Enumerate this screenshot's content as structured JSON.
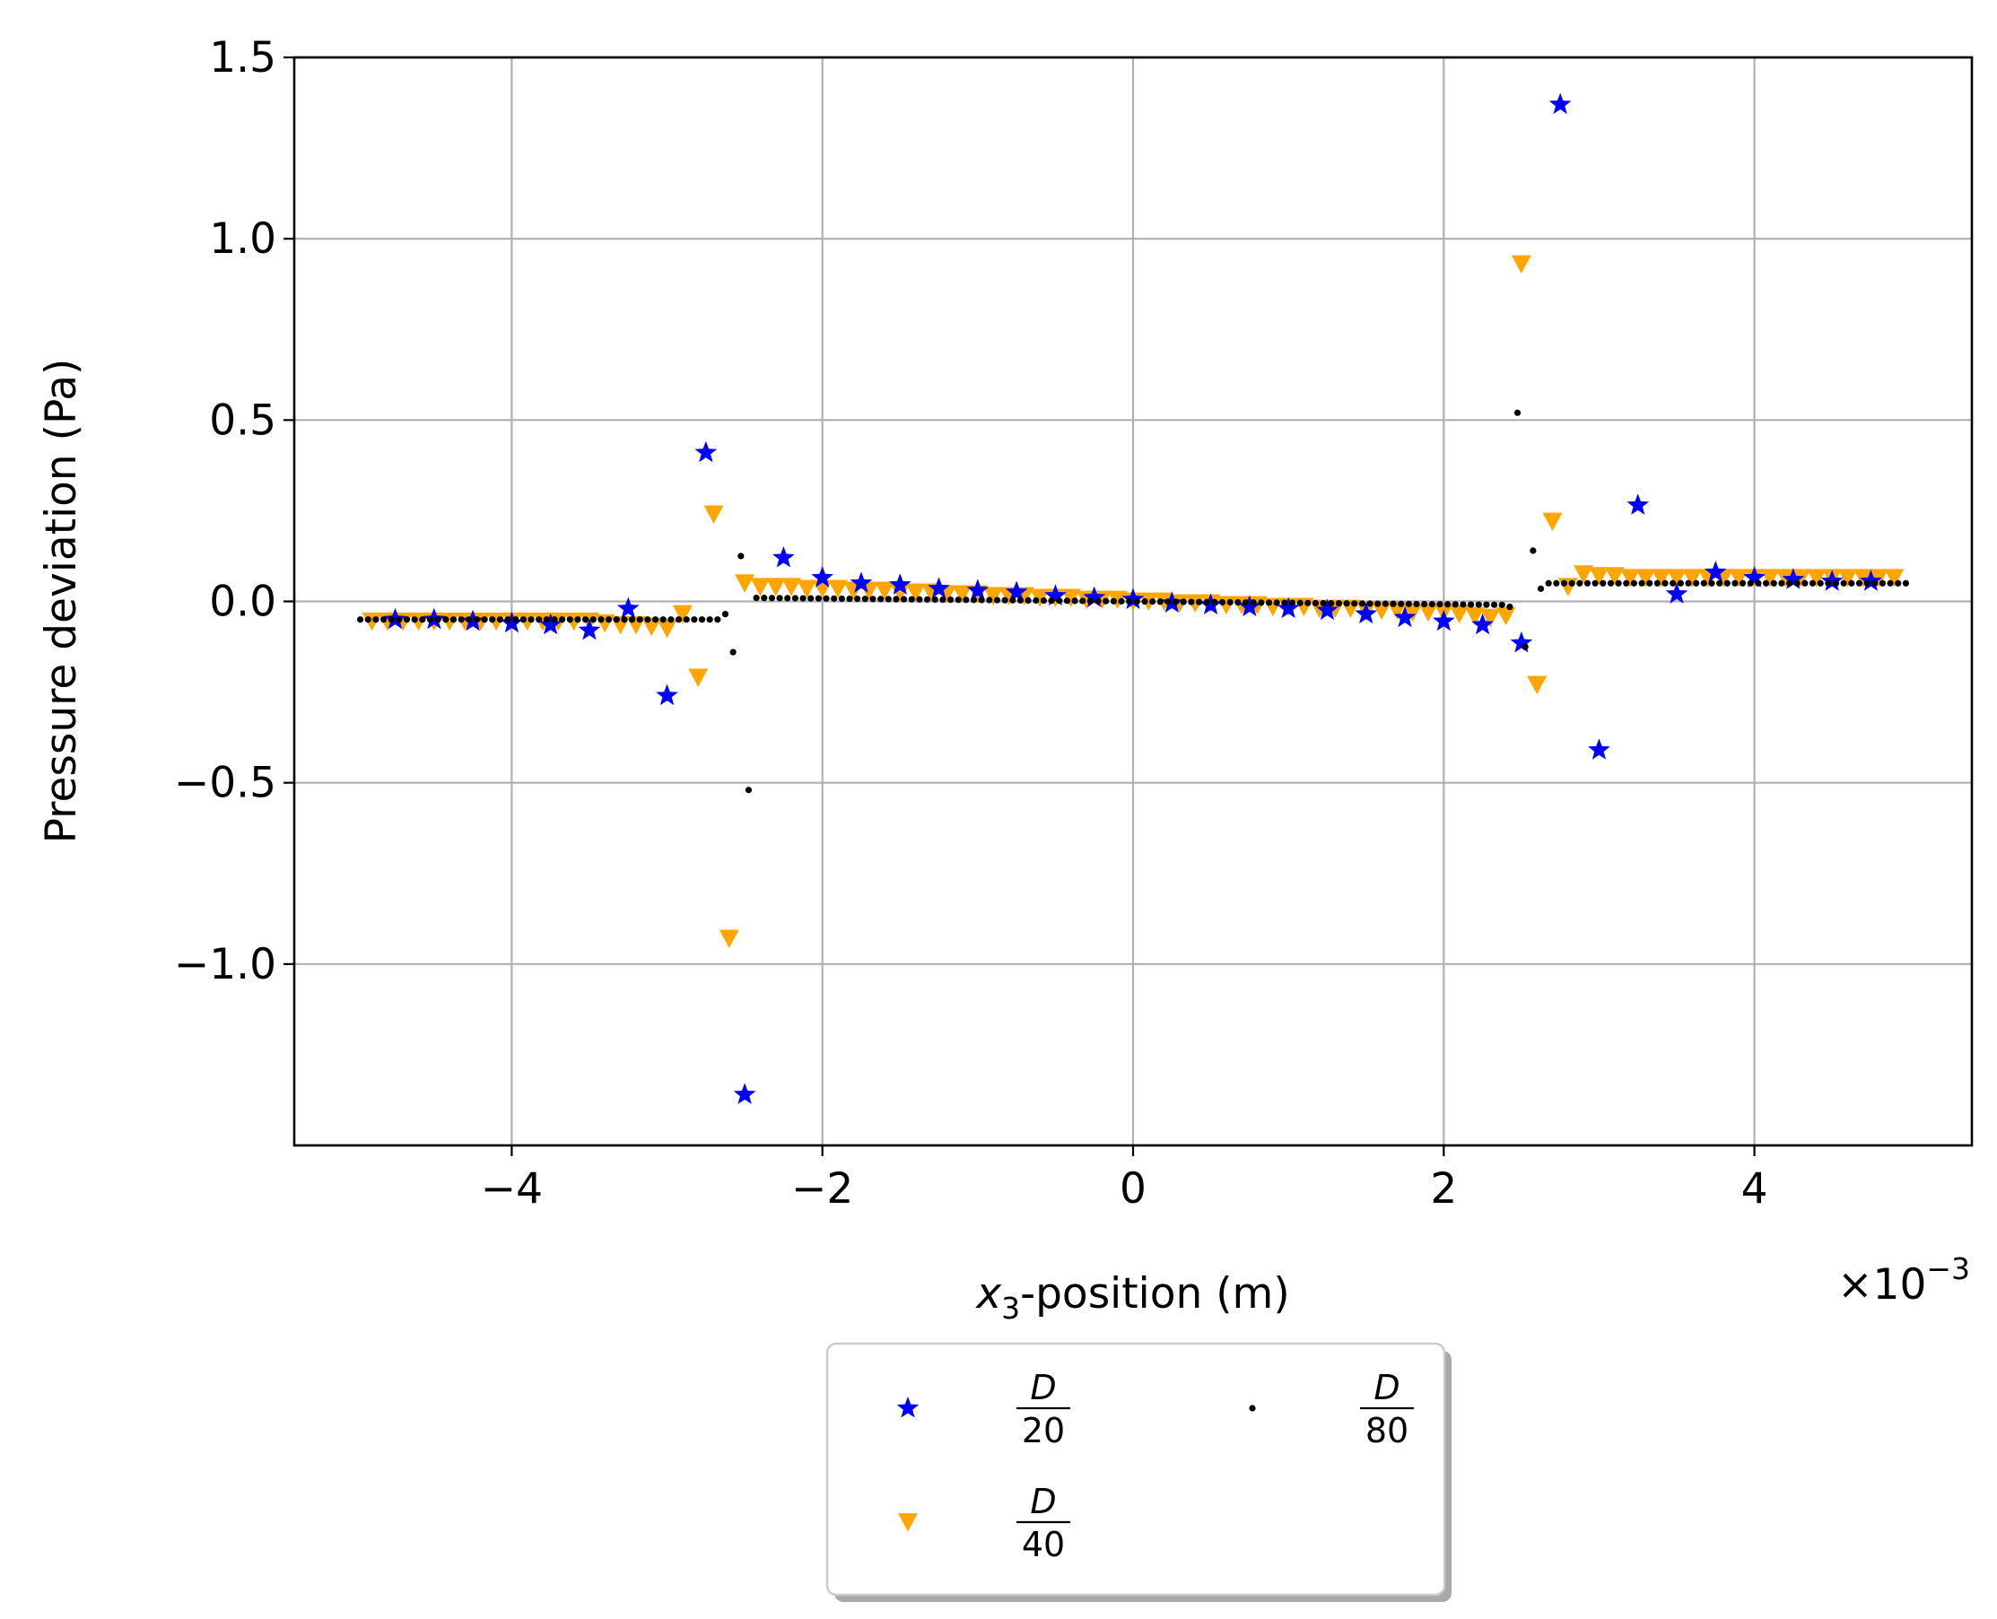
{
  "chart_data": {
    "type": "scatter",
    "title": "",
    "xlabel": "x3-position (m)",
    "xlabel_parts": {
      "var": "x",
      "sub": "3",
      "rest": "-position (m)"
    },
    "ylabel": "Pressure deviation (Pa)",
    "x_offset_text": {
      "base": "×10",
      "exp": "−3"
    },
    "xlim": [
      -5.4,
      5.4
    ],
    "ylim": [
      -1.5,
      1.5
    ],
    "x_ticks": [
      -4,
      -2,
      0,
      2,
      4
    ],
    "x_tick_labels": [
      "−4",
      "−2",
      "0",
      "2",
      "4"
    ],
    "y_ticks": [
      -1.0,
      -0.5,
      0.0,
      0.5,
      1.0,
      1.5
    ],
    "y_tick_labels": [
      "−1.0",
      "−0.5",
      "0.0",
      "0.5",
      "1.0",
      "1.5"
    ],
    "grid": true,
    "legend_placement": "below plot, center",
    "legend_columns": 2,
    "series": [
      {
        "name": "D/20",
        "legend_num": "D",
        "legend_den": "20",
        "marker": "star",
        "color": "#0000ff",
        "x": [
          -4.75,
          -4.5,
          -4.25,
          -4.0,
          -3.75,
          -3.5,
          -3.25,
          -3.0,
          -2.75,
          -2.5,
          -2.25,
          -2.0,
          -1.75,
          -1.5,
          -1.25,
          -1.0,
          -0.75,
          -0.5,
          -0.25,
          0.0,
          0.25,
          0.5,
          0.75,
          1.0,
          1.25,
          1.5,
          1.75,
          2.0,
          2.25,
          2.5,
          2.75,
          3.0,
          3.25,
          3.5,
          3.75,
          4.0,
          4.25,
          4.5,
          4.75
        ],
        "y": [
          -0.05,
          -0.05,
          -0.055,
          -0.06,
          -0.065,
          -0.08,
          -0.02,
          -0.26,
          0.41,
          -1.36,
          0.12,
          0.065,
          0.05,
          0.045,
          0.035,
          0.03,
          0.025,
          0.015,
          0.01,
          0.005,
          -0.005,
          -0.01,
          -0.015,
          -0.02,
          -0.025,
          -0.035,
          -0.045,
          -0.055,
          -0.065,
          -0.115,
          1.37,
          -0.41,
          0.265,
          0.02,
          0.08,
          0.065,
          0.06,
          0.055,
          0.055
        ]
      },
      {
        "name": "D/40",
        "legend_num": "D",
        "legend_den": "40",
        "marker": "triangle_down",
        "color": "#ffa500",
        "x": [
          -4.9,
          -4.8,
          -4.7,
          -4.6,
          -4.5,
          -4.4,
          -4.3,
          -4.2,
          -4.1,
          -4.0,
          -3.9,
          -3.8,
          -3.7,
          -3.6,
          -3.5,
          -3.4,
          -3.3,
          -3.2,
          -3.1,
          -3.0,
          -2.9,
          -2.8,
          -2.7,
          -2.6,
          -2.5,
          -2.4,
          -2.3,
          -2.2,
          -2.1,
          -2.0,
          -1.9,
          -1.8,
          -1.7,
          -1.6,
          -1.5,
          -1.4,
          -1.3,
          -1.2,
          -1.1,
          -1.0,
          -0.9,
          -0.8,
          -0.7,
          -0.6,
          -0.5,
          -0.4,
          -0.3,
          -0.2,
          -0.1,
          0.0,
          0.1,
          0.2,
          0.3,
          0.4,
          0.5,
          0.6,
          0.7,
          0.8,
          0.9,
          1.0,
          1.1,
          1.2,
          1.3,
          1.4,
          1.5,
          1.6,
          1.7,
          1.8,
          1.9,
          2.0,
          2.1,
          2.2,
          2.3,
          2.4,
          2.5,
          2.6,
          2.7,
          2.8,
          2.9,
          3.0,
          3.1,
          3.2,
          3.3,
          3.4,
          3.5,
          3.6,
          3.7,
          3.8,
          3.9,
          4.0,
          4.1,
          4.2,
          4.3,
          4.4,
          4.5,
          4.6,
          4.7,
          4.8,
          4.9
        ],
        "y": [
          -0.055,
          -0.055,
          -0.055,
          -0.055,
          -0.055,
          -0.055,
          -0.055,
          -0.055,
          -0.055,
          -0.055,
          -0.055,
          -0.055,
          -0.055,
          -0.055,
          -0.055,
          -0.06,
          -0.065,
          -0.065,
          -0.07,
          -0.075,
          -0.035,
          -0.21,
          0.24,
          -0.93,
          0.05,
          0.04,
          0.04,
          0.04,
          0.035,
          0.035,
          0.035,
          0.03,
          0.03,
          0.03,
          0.025,
          0.025,
          0.025,
          0.02,
          0.02,
          0.02,
          0.015,
          0.015,
          0.015,
          0.01,
          0.01,
          0.01,
          0.005,
          0.005,
          0.005,
          0.0,
          0.0,
          0.0,
          -0.005,
          -0.005,
          -0.005,
          -0.01,
          -0.01,
          -0.01,
          -0.015,
          -0.015,
          -0.015,
          -0.02,
          -0.02,
          -0.02,
          -0.025,
          -0.025,
          -0.025,
          -0.03,
          -0.03,
          -0.03,
          -0.035,
          -0.04,
          -0.045,
          -0.04,
          0.93,
          -0.23,
          0.22,
          0.04,
          0.075,
          0.07,
          0.07,
          0.065,
          0.065,
          0.065,
          0.065,
          0.065,
          0.065,
          0.065,
          0.065,
          0.065,
          0.065,
          0.065,
          0.065,
          0.065,
          0.065,
          0.065,
          0.065,
          0.065,
          0.065
        ]
      },
      {
        "name": "D/80",
        "legend_num": "D",
        "legend_den": "80",
        "marker": "point",
        "color": "#000000",
        "x_start": -4.975,
        "x_step": 0.05,
        "count": 200,
        "left_value": -0.05,
        "center_start_value": 0.01,
        "center_end_value": -0.01,
        "right_value": 0.05,
        "left_center_boundary": -2.5,
        "center_right_boundary": 2.5,
        "near_interface": [
          {
            "x": -2.625,
            "y": -0.035
          },
          {
            "x": -2.575,
            "y": -0.14
          },
          {
            "x": -2.525,
            "y": 0.125
          },
          {
            "x": -2.475,
            "y": -0.52
          },
          {
            "x": 2.425,
            "y": -0.015
          },
          {
            "x": 2.475,
            "y": 0.52
          },
          {
            "x": 2.525,
            "y": -0.125
          },
          {
            "x": 2.575,
            "y": 0.14
          },
          {
            "x": 2.625,
            "y": 0.035
          }
        ]
      }
    ]
  }
}
